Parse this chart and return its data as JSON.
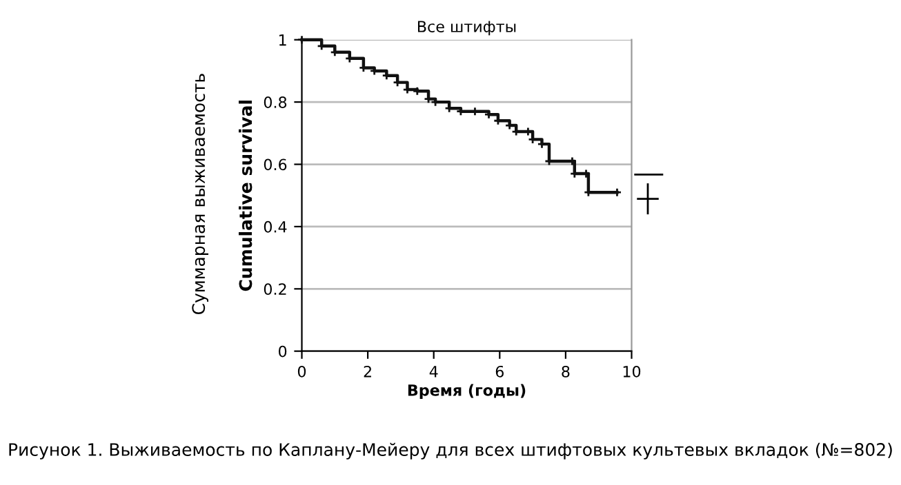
{
  "chart_data": {
    "type": "step",
    "title": "Все штифты",
    "xlabel": "Время (годы)",
    "ylabel": "Cumulative survival",
    "annotations": [
      "Суммарная выживаемость",
      "Рисунок 1. Выживаемость по Каплану-Мейеру для всех штифтовых культевых вкладок (№=802)"
    ],
    "x": [
      0,
      0.6,
      1.0,
      1.45,
      1.87,
      2.2,
      2.57,
      2.9,
      3.2,
      3.5,
      3.84,
      4.05,
      4.47,
      4.82,
      5.25,
      5.67,
      5.95,
      6.3,
      6.5,
      6.86,
      7.0,
      7.28,
      7.5,
      8.2,
      8.27,
      8.62,
      8.69,
      9.56
    ],
    "series": [
      {
        "color": "#111111",
        "values": [
          1.0,
          0.98,
          0.96,
          0.94,
          0.91,
          0.9,
          0.885,
          0.863,
          0.84,
          0.835,
          0.81,
          0.8,
          0.78,
          0.77,
          0.77,
          0.76,
          0.74,
          0.725,
          0.705,
          0.705,
          0.68,
          0.665,
          0.61,
          0.61,
          0.57,
          0.57,
          0.51,
          0.51
        ]
      }
    ],
    "xlim": [
      0,
      10
    ],
    "ylim": [
      0,
      1
    ],
    "xticks": [
      0,
      2,
      4,
      6,
      8,
      10
    ],
    "yticks": [
      0,
      0.2,
      0.4,
      0.6,
      0.8,
      1
    ],
    "grid": "y",
    "marker": "cross",
    "line_style": "solid"
  }
}
